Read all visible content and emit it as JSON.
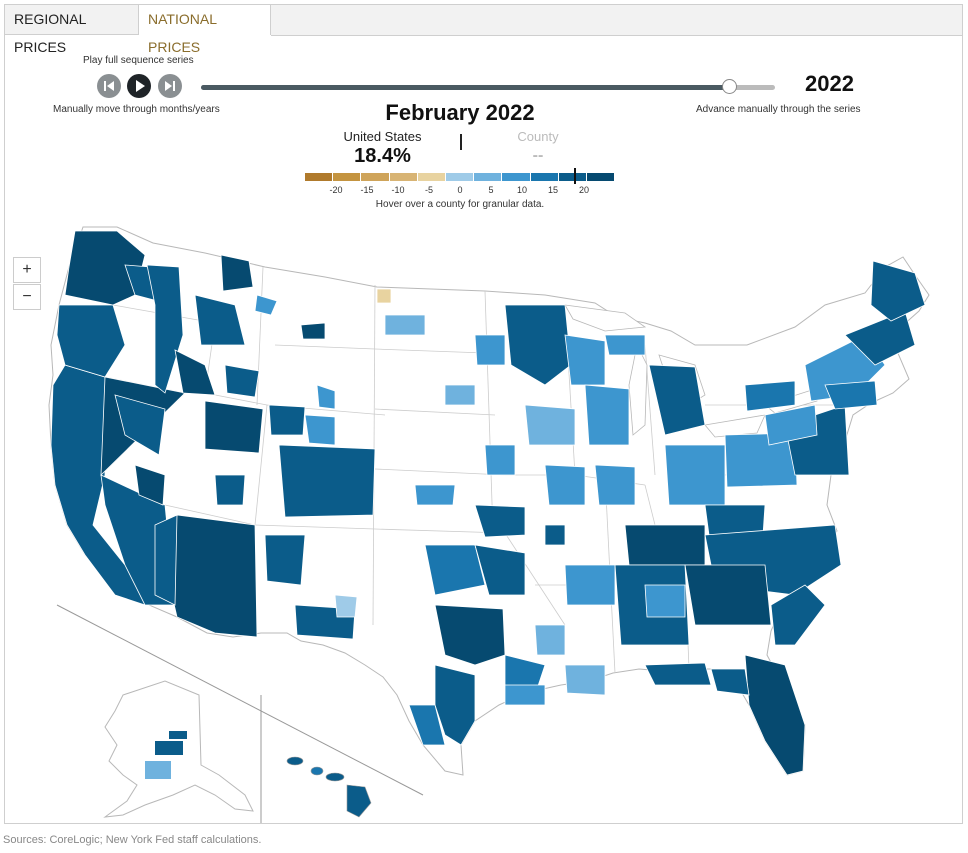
{
  "tabs": [
    {
      "label": "REGIONAL PRICES",
      "active": false
    },
    {
      "label": "NATIONAL PRICES",
      "active": true
    }
  ],
  "controls": {
    "play_caption": "Play full sequence series",
    "manual_caption": "Manually move through months/years",
    "advance_caption": "Advance manually through the series",
    "year": "2022",
    "slider_progress": 0.92,
    "buttons": [
      "previous-icon",
      "play-icon",
      "next-icon"
    ]
  },
  "summary": {
    "period": "February 2022",
    "national_label": "United States",
    "national_value": "18.4%",
    "national_value_number": 18.4,
    "county_label": "County",
    "county_value": "--"
  },
  "legend": {
    "colors": [
      "#b07a2c",
      "#c49440",
      "#cfa45a",
      "#d8b474",
      "#e8d3a0",
      "#9fcbe8",
      "#6fb2de",
      "#3d96cf",
      "#1a76ae",
      "#0b5c8a",
      "#064a70"
    ],
    "ticks": [
      "-20",
      "-15",
      "-10",
      "-5",
      "0",
      "5",
      "10",
      "15",
      "20"
    ],
    "tick_values": [
      -20,
      -15,
      -10,
      -5,
      0,
      5,
      10,
      15,
      20
    ],
    "min": -25,
    "max": 25,
    "note": "Hover over a county for granular data."
  },
  "zoom": {
    "in": "+",
    "out": "−"
  },
  "sources": "Sources: CoreLogic; New York Fed staff calculations."
}
